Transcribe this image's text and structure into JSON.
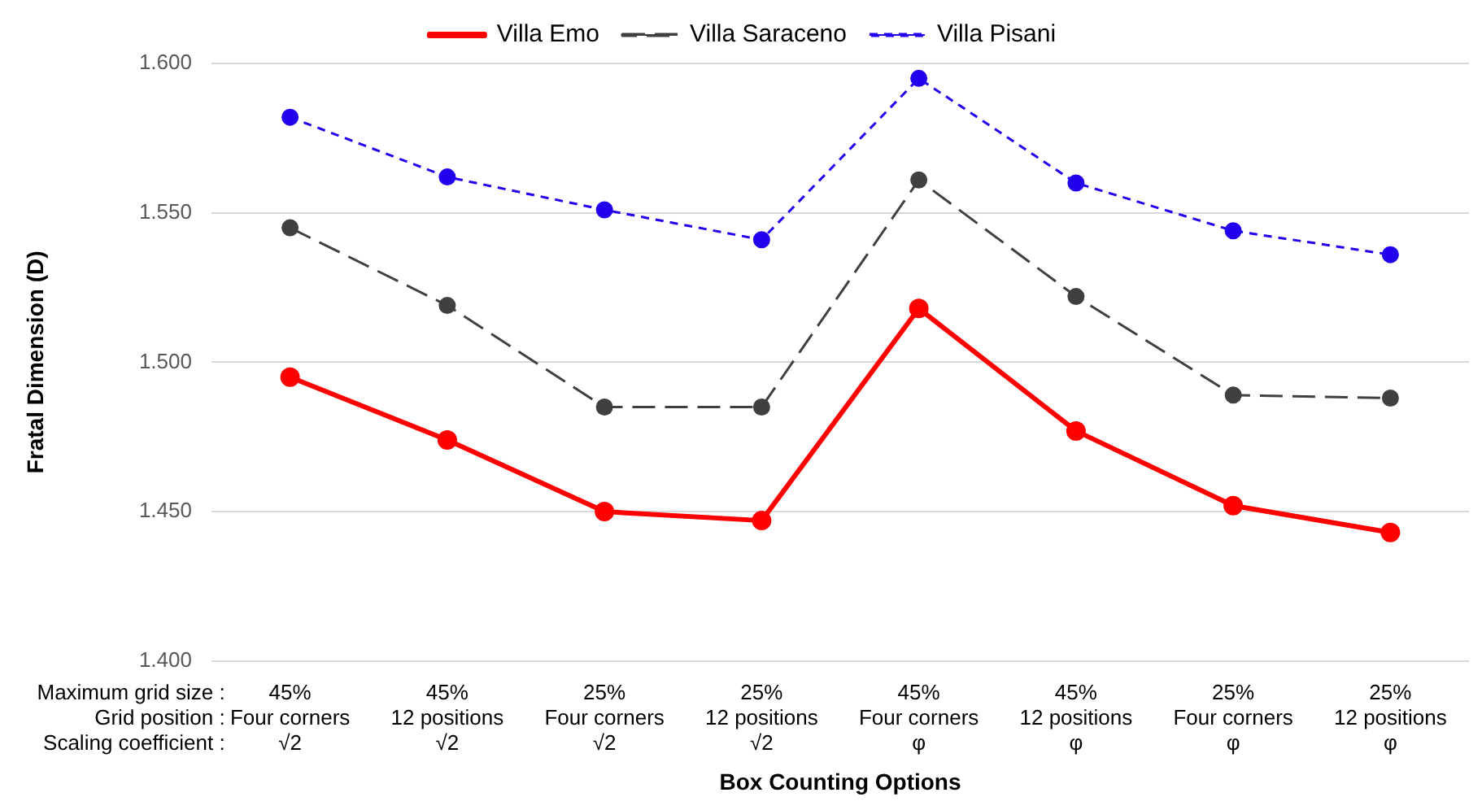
{
  "chart_data": {
    "type": "line",
    "xlabel": "Box Counting Options",
    "ylabel": "Fratal Dimension (D)",
    "categories": [
      "45%\nFour corners\n√2",
      "45%\n12 positions\n√2",
      "25%\nFour corners\n√2",
      "25%\n12 positions\n√2",
      "45%\nFour corners\nφ",
      "45%\n12 positions\nφ",
      "25%\nFour corners\nφ",
      "25%\n12 positions\nφ"
    ],
    "series": [
      {
        "name": "Villa Emo",
        "color": "#ff0000",
        "line_style": "solid",
        "values": [
          1.495,
          1.474,
          1.45,
          1.447,
          1.518,
          1.477,
          1.452,
          1.443
        ]
      },
      {
        "name": "Villa Saraceno",
        "color": "#404040",
        "line_style": "dashed",
        "values": [
          1.545,
          1.519,
          1.485,
          1.485,
          1.561,
          1.522,
          1.489,
          1.488
        ]
      },
      {
        "name": "Villa Pisani",
        "color": "#2200ee",
        "line_style": "dotted",
        "values": [
          1.582,
          1.562,
          1.551,
          1.541,
          1.595,
          1.56,
          1.544,
          1.536
        ]
      }
    ],
    "annotations": [
      "Maximum grid size :",
      "Grid position :",
      "Scaling coefficient :"
    ],
    "ylim": [
      1.4,
      1.6
    ],
    "yticks": [
      {
        "value": 1.4,
        "label": "1.400"
      },
      {
        "value": 1.45,
        "label": "1.450"
      },
      {
        "value": 1.5,
        "label": "1.500"
      },
      {
        "value": 1.55,
        "label": "1.550"
      },
      {
        "value": 1.6,
        "label": "1.600"
      }
    ],
    "grid": "y",
    "legend": "top",
    "marker": "circle"
  }
}
